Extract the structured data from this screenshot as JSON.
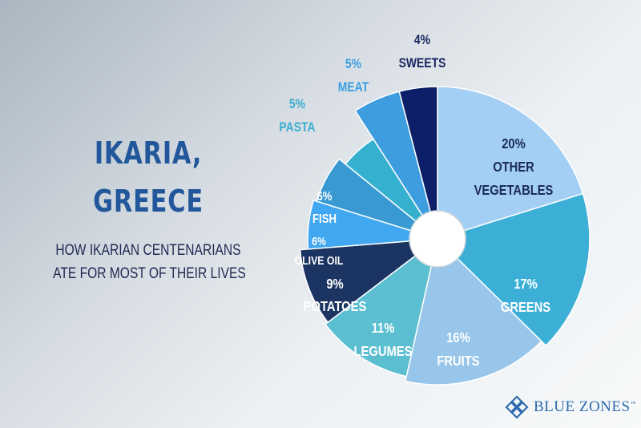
{
  "header": {
    "title_line1": "IKARIA,",
    "title_line2": "GREECE",
    "subtitle_line1": "HOW  IKARIAN CENTENARIANS",
    "subtitle_line2": "ATE FOR MOST OF THEIR LIVES"
  },
  "brand": {
    "name": "BLUE ZONES",
    "mark": "™"
  },
  "chart_data": {
    "type": "pie",
    "slices": [
      {
        "label": "OTHER VEGETABLES",
        "value": 20,
        "percent_label": "20%",
        "color": "#a4cff4"
      },
      {
        "label": "GREENS",
        "value": 17,
        "percent_label": "17%",
        "color": "#3bafd6"
      },
      {
        "label": "FRUITS",
        "value": 16,
        "percent_label": "16%",
        "color": "#97c6ea"
      },
      {
        "label": "LEGUMES",
        "value": 11,
        "percent_label": "11%",
        "color": "#5cbfd1"
      },
      {
        "label": "POTATOES",
        "value": 9,
        "percent_label": "9%",
        "color": "#1c3462"
      },
      {
        "label": "OLIVE OIL",
        "value": 6,
        "percent_label": "6%",
        "color": "#41a7f1"
      },
      {
        "label": "FISH",
        "value": 6,
        "percent_label": "6%",
        "color": "#3999d2"
      },
      {
        "label": "PASTA",
        "value": 5,
        "percent_label": "5%",
        "color": "#35b1cf"
      },
      {
        "label": "MEAT",
        "value": 5,
        "percent_label": "5%",
        "color": "#3e9dde"
      },
      {
        "label": "SWEETS",
        "value": 4,
        "percent_label": "4%",
        "color": "#0c1f68"
      }
    ]
  }
}
